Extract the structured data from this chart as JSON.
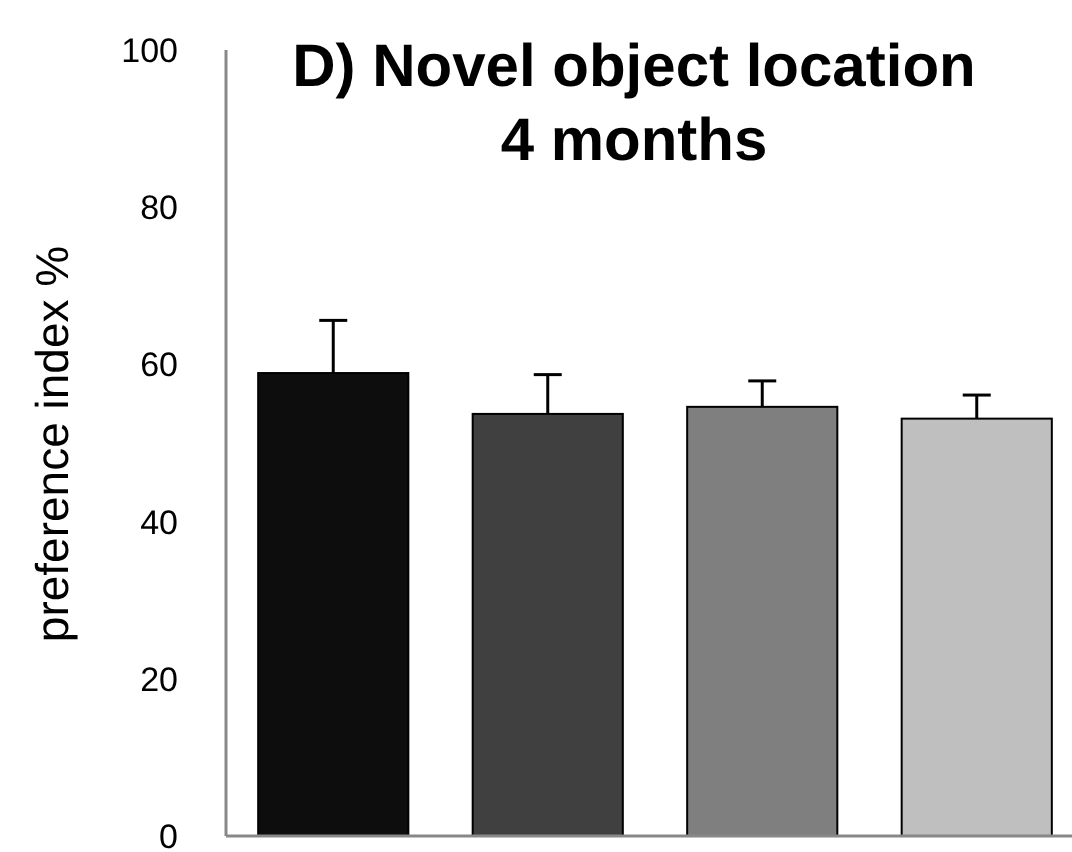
{
  "chart_data": {
    "type": "bar",
    "title": "D) Novel object location\n4 months",
    "ylabel": "preference index %",
    "categories": [
      null,
      null,
      null,
      null
    ],
    "values": [
      58.9,
      53.7,
      54.6,
      53.1
    ],
    "colors": [
      "#0d0d0d",
      "#404040",
      "#7f7f7f",
      "#bfbfbf"
    ],
    "errors": [
      [
        58.9,
        65.6
      ],
      [
        53.7,
        58.7
      ],
      [
        54.6,
        57.9
      ],
      [
        53.1,
        56.1
      ]
    ],
    "ylim": [
      0,
      100
    ],
    "yticks": [
      0,
      20,
      40,
      60,
      80,
      100
    ],
    "grid": false
  }
}
